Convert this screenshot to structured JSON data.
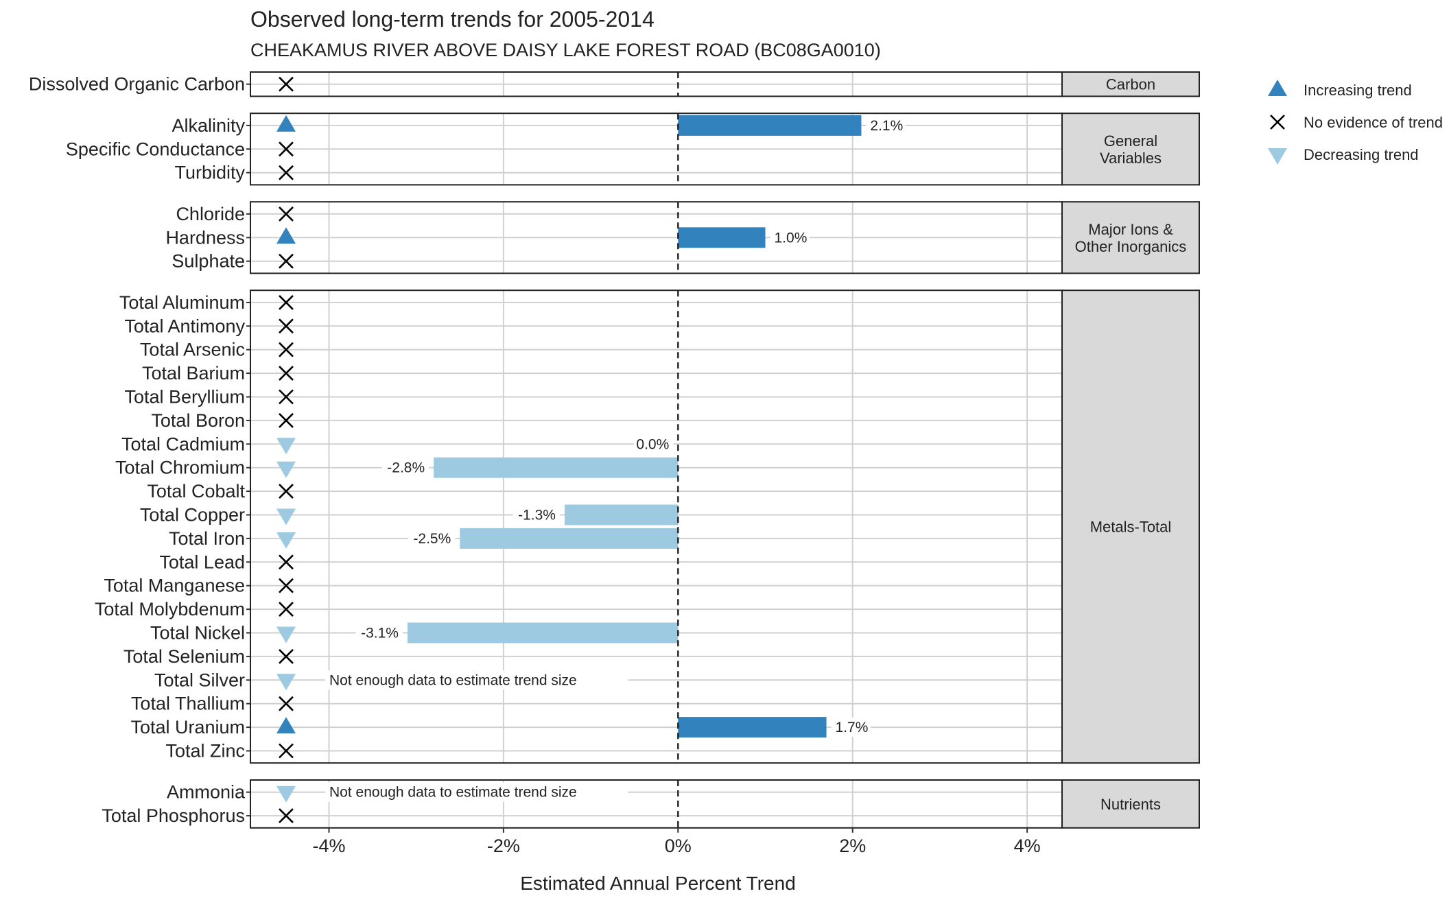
{
  "chart_data": {
    "type": "bar",
    "title": "Observed long-term trends for 2005-2014",
    "subtitle": "CHEAKAMUS RIVER ABOVE DAISY LAKE FOREST ROAD (BC08GA0010)",
    "xlabel": "Estimated Annual Percent Trend",
    "ylabel": "",
    "xlim": [
      -4.9,
      4.4
    ],
    "x_ticks": [
      {
        "value": -4,
        "label": "-4%"
      },
      {
        "value": -2,
        "label": "-2%"
      },
      {
        "value": 0,
        "label": "0%"
      },
      {
        "value": 2,
        "label": "2%"
      },
      {
        "value": 4,
        "label": "4%"
      }
    ],
    "grid": true,
    "legend_position": "right",
    "colors": {
      "increasing": "#3182bd",
      "decreasing": "#9ecae1",
      "none": "#000000",
      "strip": "#d9d9d9"
    },
    "legend": [
      {
        "label": "Increasing trend",
        "symbol": "increasing"
      },
      {
        "label": "No evidence of trend",
        "symbol": "none"
      },
      {
        "label": "Decreasing trend",
        "symbol": "decreasing"
      }
    ],
    "insufficient_data_label": "Not enough data to estimate trend size",
    "panels": [
      {
        "name": "Carbon",
        "strip_lines": [
          "Carbon"
        ],
        "rows": [
          {
            "variable": "Dissolved Organic Carbon",
            "trend": "none",
            "value": null,
            "label": null
          }
        ]
      },
      {
        "name": "General Variables",
        "strip_lines": [
          "General",
          "Variables"
        ],
        "rows": [
          {
            "variable": "Alkalinity",
            "trend": "increasing",
            "value": 2.1,
            "label": "2.1%"
          },
          {
            "variable": "Specific Conductance",
            "trend": "none",
            "value": null,
            "label": null
          },
          {
            "variable": "Turbidity",
            "trend": "none",
            "value": null,
            "label": null
          }
        ]
      },
      {
        "name": "Major Ions & Other Inorganics",
        "strip_lines": [
          "Major Ions &",
          "Other Inorganics"
        ],
        "rows": [
          {
            "variable": "Chloride",
            "trend": "none",
            "value": null,
            "label": null
          },
          {
            "variable": "Hardness",
            "trend": "increasing",
            "value": 1.0,
            "label": "1.0%"
          },
          {
            "variable": "Sulphate",
            "trend": "none",
            "value": null,
            "label": null
          }
        ]
      },
      {
        "name": "Metals-Total",
        "strip_lines": [
          "Metals-Total"
        ],
        "rows": [
          {
            "variable": "Total Aluminum",
            "trend": "none",
            "value": null,
            "label": null
          },
          {
            "variable": "Total Antimony",
            "trend": "none",
            "value": null,
            "label": null
          },
          {
            "variable": "Total Arsenic",
            "trend": "none",
            "value": null,
            "label": null
          },
          {
            "variable": "Total Barium",
            "trend": "none",
            "value": null,
            "label": null
          },
          {
            "variable": "Total Beryllium",
            "trend": "none",
            "value": null,
            "label": null
          },
          {
            "variable": "Total Boron",
            "trend": "none",
            "value": null,
            "label": null
          },
          {
            "variable": "Total Cadmium",
            "trend": "decreasing",
            "value": 0.0,
            "label": "0.0%"
          },
          {
            "variable": "Total Chromium",
            "trend": "decreasing",
            "value": -2.8,
            "label": "-2.8%"
          },
          {
            "variable": "Total Cobalt",
            "trend": "none",
            "value": null,
            "label": null
          },
          {
            "variable": "Total Copper",
            "trend": "decreasing",
            "value": -1.3,
            "label": "-1.3%"
          },
          {
            "variable": "Total Iron",
            "trend": "decreasing",
            "value": -2.5,
            "label": "-2.5%"
          },
          {
            "variable": "Total Lead",
            "trend": "none",
            "value": null,
            "label": null
          },
          {
            "variable": "Total Manganese",
            "trend": "none",
            "value": null,
            "label": null
          },
          {
            "variable": "Total Molybdenum",
            "trend": "none",
            "value": null,
            "label": null
          },
          {
            "variable": "Total Nickel",
            "trend": "decreasing",
            "value": -3.1,
            "label": "-3.1%"
          },
          {
            "variable": "Total Selenium",
            "trend": "none",
            "value": null,
            "label": null
          },
          {
            "variable": "Total Silver",
            "trend": "decreasing",
            "value": null,
            "label": null,
            "insufficient": true
          },
          {
            "variable": "Total Thallium",
            "trend": "none",
            "value": null,
            "label": null
          },
          {
            "variable": "Total Uranium",
            "trend": "increasing",
            "value": 1.7,
            "label": "1.7%"
          },
          {
            "variable": "Total Zinc",
            "trend": "none",
            "value": null,
            "label": null
          }
        ]
      },
      {
        "name": "Nutrients",
        "strip_lines": [
          "Nutrients"
        ],
        "rows": [
          {
            "variable": "Ammonia",
            "trend": "decreasing",
            "value": null,
            "label": null,
            "insufficient": true
          },
          {
            "variable": "Total Phosphorus",
            "trend": "none",
            "value": null,
            "label": null
          }
        ]
      }
    ]
  }
}
